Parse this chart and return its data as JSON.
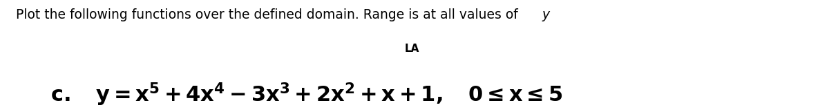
{
  "line1": "Plot the following functions over the defined domain. Range is at all values of ",
  "line1_italic": "y",
  "line2_symbol": "LA",
  "label_c": "c.",
  "background_color": "#ffffff",
  "text_color": "#000000",
  "fig_width": 12.0,
  "fig_height": 1.62,
  "dpi": 100,
  "line1_fontsize": 13.5,
  "line2_fontsize": 11,
  "eq_fontsize": 22
}
